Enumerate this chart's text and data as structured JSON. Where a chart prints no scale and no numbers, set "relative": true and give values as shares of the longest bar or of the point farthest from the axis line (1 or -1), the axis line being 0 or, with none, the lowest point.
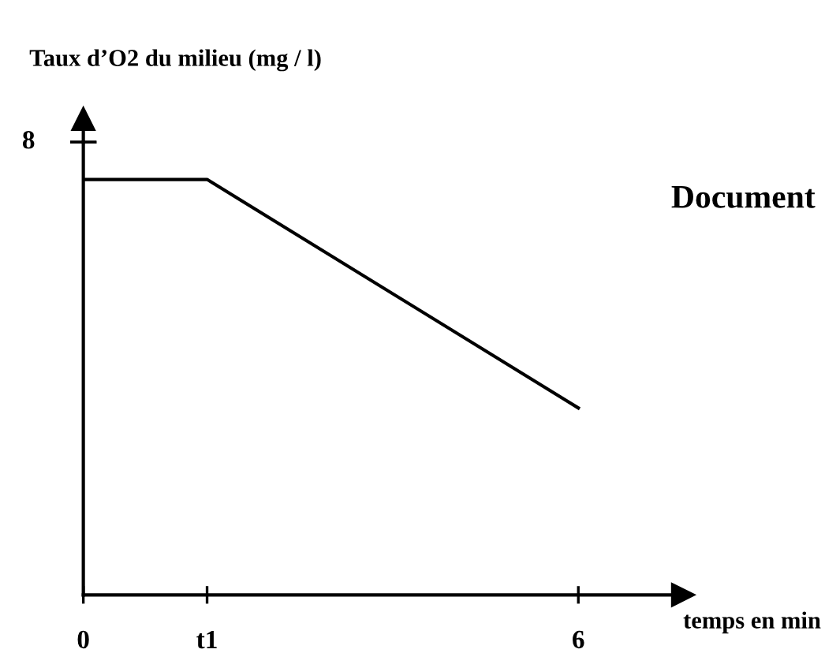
{
  "chart_data": {
    "type": "line",
    "relative": true,
    "ylabel": "Taux d’O2 du milieu (mg / l)",
    "xlabel": "temps en min",
    "annotations": [
      "Document",
      "8"
    ],
    "x": [
      0,
      1.5,
      6
    ],
    "series": [
      {
        "color": "#000000",
        "values": [
          1,
          1,
          0.45
        ]
      }
    ],
    "xlim": [
      0,
      7.27
    ],
    "xticks": [
      0,
      {
        "value": 1.5,
        "label": "t1"
      },
      6
    ],
    "grid": false,
    "legend": false,
    "marker": "none",
    "line_style": "solid"
  }
}
